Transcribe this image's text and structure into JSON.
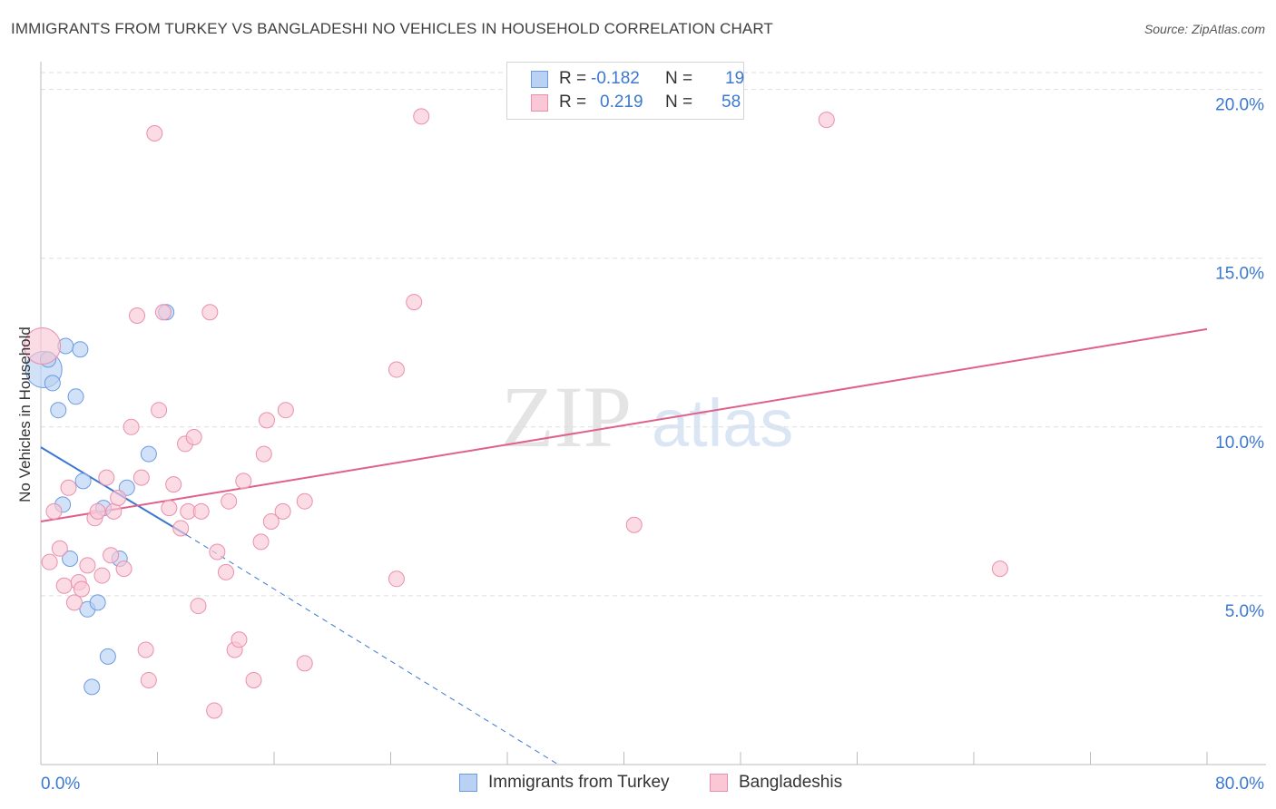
{
  "header": {
    "title": "IMMIGRANTS FROM TURKEY VS BANGLADESHI NO VEHICLES IN HOUSEHOLD CORRELATION CHART",
    "source": "Source: ZipAtlas.com"
  },
  "watermark": {
    "zip": "ZIP",
    "atlas": "atlas"
  },
  "colors": {
    "turkey_fill": "#b9d1f2",
    "turkey_stroke": "#6c9be0",
    "turkey_line": "#3a78d0",
    "bangla_fill": "#f9c7d6",
    "bangla_stroke": "#ea8fae",
    "bangla_line": "#e0608a",
    "axis_label": "#3b78d0",
    "grid": "#dddddd"
  },
  "legend": {
    "rows": [
      {
        "r_label": "R =",
        "r_value": "-0.182",
        "n_label": "N =",
        "n_value": "19"
      },
      {
        "r_label": "R =",
        "r_value": "0.219",
        "n_label": "N =",
        "n_value": "58"
      }
    ]
  },
  "bottom_legend": [
    "Immigrants from Turkey",
    "Bangladeshis"
  ],
  "chart_data": {
    "type": "scatter",
    "title": "IMMIGRANTS FROM TURKEY VS BANGLADESHI NO VEHICLES IN HOUSEHOLD CORRELATION CHART",
    "xlabel": "",
    "ylabel": "No Vehicles in Household",
    "xlim": [
      0,
      80
    ],
    "ylim": [
      0,
      20.5
    ],
    "x_tick_labels": [
      "0.0%",
      "80.0%"
    ],
    "y_ticks": [
      5,
      10,
      15,
      20
    ],
    "y_tick_labels": [
      "5.0%",
      "10.0%",
      "15.0%",
      "20.0%"
    ],
    "grid": true,
    "series": [
      {
        "name": "Immigrants from Turkey",
        "r": -0.182,
        "n": 19,
        "points": [
          {
            "x": 0.2,
            "y": 11.7,
            "big": true
          },
          {
            "x": 0.5,
            "y": 12.0
          },
          {
            "x": 0.8,
            "y": 11.3
          },
          {
            "x": 1.2,
            "y": 10.5
          },
          {
            "x": 1.5,
            "y": 7.7
          },
          {
            "x": 1.7,
            "y": 12.4
          },
          {
            "x": 2.0,
            "y": 6.1
          },
          {
            "x": 2.4,
            "y": 10.9
          },
          {
            "x": 2.7,
            "y": 12.3
          },
          {
            "x": 2.9,
            "y": 8.4
          },
          {
            "x": 3.2,
            "y": 4.6
          },
          {
            "x": 3.5,
            "y": 2.3
          },
          {
            "x": 3.9,
            "y": 4.8
          },
          {
            "x": 4.3,
            "y": 7.6
          },
          {
            "x": 4.6,
            "y": 3.2
          },
          {
            "x": 5.4,
            "y": 6.1
          },
          {
            "x": 5.9,
            "y": 8.2
          },
          {
            "x": 7.4,
            "y": 9.2
          },
          {
            "x": 8.6,
            "y": 13.4
          }
        ],
        "trend": {
          "x1": 0,
          "y1": 9.4,
          "x2": 10,
          "y2": 6.8,
          "dash_to_x": 35.5,
          "dash_to_y": 0
        }
      },
      {
        "name": "Bangladeshis",
        "r": 0.219,
        "n": 58,
        "points": [
          {
            "x": 0.1,
            "y": 12.4,
            "big": true
          },
          {
            "x": 0.6,
            "y": 6.0
          },
          {
            "x": 0.9,
            "y": 7.5
          },
          {
            "x": 1.3,
            "y": 6.4
          },
          {
            "x": 1.6,
            "y": 5.3
          },
          {
            "x": 1.9,
            "y": 8.2
          },
          {
            "x": 2.3,
            "y": 4.8
          },
          {
            "x": 2.6,
            "y": 5.4
          },
          {
            "x": 2.8,
            "y": 5.2
          },
          {
            "x": 3.2,
            "y": 5.9
          },
          {
            "x": 3.7,
            "y": 7.3
          },
          {
            "x": 3.9,
            "y": 7.5
          },
          {
            "x": 4.2,
            "y": 5.6
          },
          {
            "x": 4.5,
            "y": 8.5
          },
          {
            "x": 4.8,
            "y": 6.2
          },
          {
            "x": 5.0,
            "y": 7.5
          },
          {
            "x": 5.3,
            "y": 7.9
          },
          {
            "x": 5.7,
            "y": 5.8
          },
          {
            "x": 6.2,
            "y": 10.0
          },
          {
            "x": 6.6,
            "y": 13.3
          },
          {
            "x": 6.9,
            "y": 8.5
          },
          {
            "x": 7.2,
            "y": 3.4
          },
          {
            "x": 7.4,
            "y": 2.5
          },
          {
            "x": 7.8,
            "y": 18.7
          },
          {
            "x": 8.1,
            "y": 10.5
          },
          {
            "x": 8.4,
            "y": 13.4
          },
          {
            "x": 8.8,
            "y": 7.6
          },
          {
            "x": 9.1,
            "y": 8.3
          },
          {
            "x": 9.6,
            "y": 7.0
          },
          {
            "x": 9.9,
            "y": 9.5
          },
          {
            "x": 10.1,
            "y": 7.5
          },
          {
            "x": 10.5,
            "y": 9.7
          },
          {
            "x": 10.8,
            "y": 4.7
          },
          {
            "x": 11.0,
            "y": 7.5
          },
          {
            "x": 11.6,
            "y": 13.4
          },
          {
            "x": 11.9,
            "y": 1.6
          },
          {
            "x": 12.1,
            "y": 6.3
          },
          {
            "x": 12.7,
            "y": 5.7
          },
          {
            "x": 12.9,
            "y": 7.8
          },
          {
            "x": 13.3,
            "y": 3.4
          },
          {
            "x": 13.6,
            "y": 3.7
          },
          {
            "x": 13.9,
            "y": 8.4
          },
          {
            "x": 14.6,
            "y": 2.5
          },
          {
            "x": 15.1,
            "y": 6.6
          },
          {
            "x": 15.3,
            "y": 9.2
          },
          {
            "x": 15.5,
            "y": 10.2
          },
          {
            "x": 15.8,
            "y": 7.2
          },
          {
            "x": 16.6,
            "y": 7.5
          },
          {
            "x": 16.8,
            "y": 10.5
          },
          {
            "x": 18.1,
            "y": 7.8
          },
          {
            "x": 18.1,
            "y": 3.0
          },
          {
            "x": 24.4,
            "y": 5.5
          },
          {
            "x": 24.4,
            "y": 11.7
          },
          {
            "x": 25.6,
            "y": 13.7
          },
          {
            "x": 26.1,
            "y": 19.2
          },
          {
            "x": 40.7,
            "y": 7.1
          },
          {
            "x": 53.9,
            "y": 19.1
          },
          {
            "x": 65.8,
            "y": 5.8
          }
        ],
        "trend": {
          "x1": 0,
          "y1": 7.2,
          "x2": 80,
          "y2": 12.9
        }
      }
    ]
  }
}
